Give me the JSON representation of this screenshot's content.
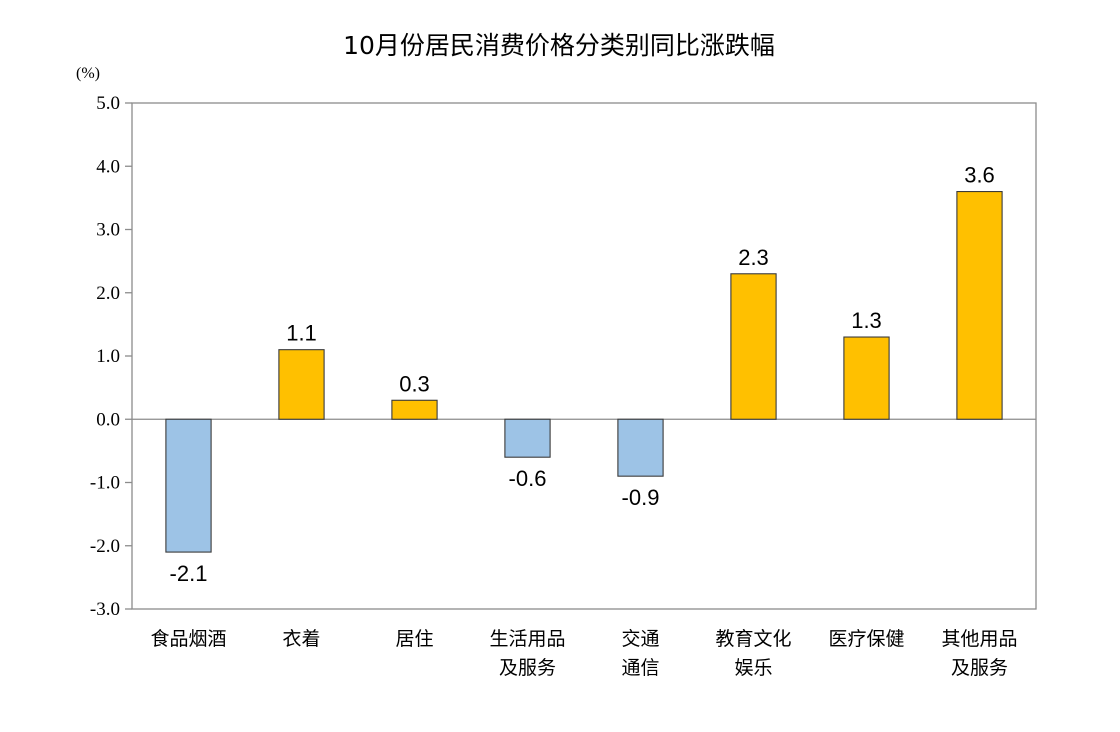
{
  "chart_data": {
    "type": "bar",
    "title": "10月份居民消费价格分类别同比涨跌幅",
    "unit": "(%)",
    "categories": [
      [
        "食品烟酒"
      ],
      [
        "衣着"
      ],
      [
        "居住"
      ],
      [
        "生活用品",
        "及服务"
      ],
      [
        "交通",
        "通信"
      ],
      [
        "教育文化",
        "娱乐"
      ],
      [
        "医疗保健"
      ],
      [
        "其他用品",
        "及服务"
      ]
    ],
    "values": [
      -2.1,
      1.1,
      0.3,
      -0.6,
      -0.9,
      2.3,
      1.3,
      3.6
    ],
    "value_labels": [
      "-2.1",
      "1.1",
      "0.3",
      "-0.6",
      "-0.9",
      "2.3",
      "1.3",
      "3.6"
    ],
    "ylim": [
      -3.0,
      5.0
    ],
    "yticks": [
      5.0,
      4.0,
      3.0,
      2.0,
      1.0,
      0.0,
      -1.0,
      -2.0,
      -3.0
    ],
    "ytick_labels": [
      "5.0",
      "4.0",
      "3.0",
      "2.0",
      "1.0",
      "0.0",
      "-1.0",
      "-2.0",
      "-3.0"
    ],
    "xlabel": "",
    "ylabel": "",
    "grid": false,
    "colors": {
      "positive": "#FFC000",
      "negative": "#9DC3E6",
      "bar_stroke": "#3a3a3a",
      "axis": "#8c8c8c",
      "zero_line": "#8c8c8c"
    }
  }
}
